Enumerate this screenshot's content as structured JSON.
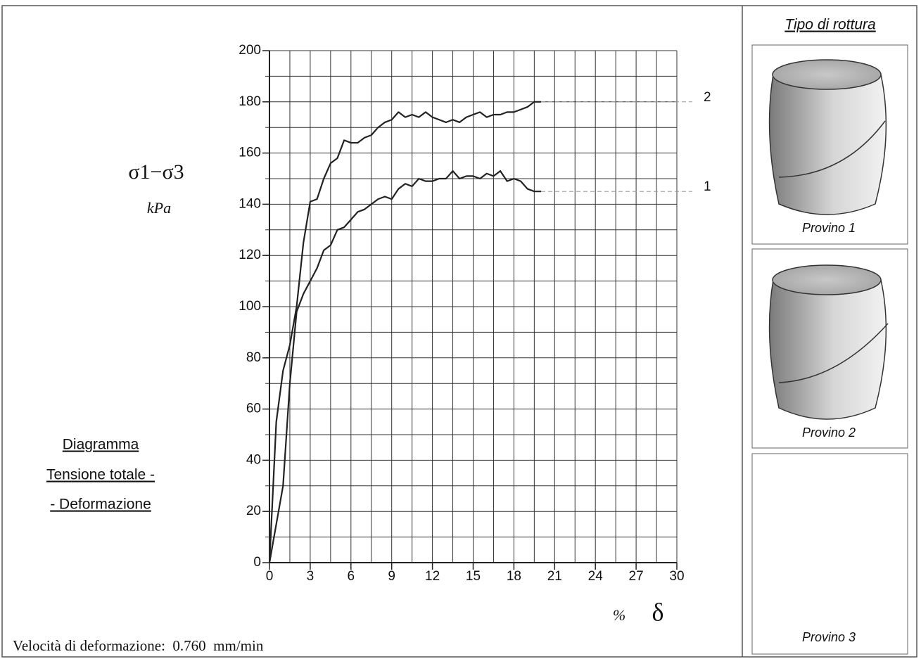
{
  "chart_data": {
    "type": "line",
    "ylabel": "σ1−σ3",
    "yunit": "kPa",
    "xunit": "%",
    "xlabel": "δ",
    "xlim": [
      0,
      30
    ],
    "xticks": [
      0,
      3,
      6,
      9,
      12,
      15,
      18,
      21,
      24,
      27,
      30
    ],
    "ylim": [
      0,
      200
    ],
    "yticks": [
      0,
      20,
      40,
      60,
      80,
      100,
      120,
      140,
      160,
      180,
      200
    ],
    "grid": true,
    "grid_step_x": 1.5,
    "grid_step_y": 10,
    "x": [
      0,
      0.5,
      1,
      1.5,
      2,
      2.5,
      3,
      3.5,
      4,
      4.5,
      5,
      5.5,
      6,
      6.5,
      7,
      7.5,
      8,
      8.5,
      9,
      9.5,
      10,
      10.5,
      11,
      11.5,
      12,
      12.5,
      13,
      13.5,
      14,
      14.5,
      15,
      15.5,
      16,
      16.5,
      17,
      17.5,
      18,
      18.5,
      19,
      19.5,
      20
    ],
    "series": [
      {
        "name": "1",
        "color": "#222222",
        "values": [
          0,
          15,
          30,
          70,
          98,
          105,
          110,
          115,
          122,
          124,
          130,
          131,
          134,
          137,
          138,
          140,
          142,
          143,
          142,
          146,
          148,
          147,
          150,
          149,
          149,
          150,
          150,
          153,
          150,
          151,
          151,
          150,
          152,
          151,
          153,
          149,
          150,
          149,
          146,
          145,
          145
        ]
      },
      {
        "name": "2",
        "color": "#222222",
        "values": [
          0,
          55,
          75,
          85,
          100,
          125,
          141,
          142,
          150,
          156,
          158,
          165,
          164,
          164,
          166,
          167,
          170,
          172,
          173,
          176,
          174,
          175,
          174,
          176,
          174,
          173,
          172,
          173,
          172,
          174,
          175,
          176,
          174,
          175,
          175,
          176,
          176,
          177,
          178,
          180,
          180
        ]
      }
    ]
  },
  "caption": {
    "lines": [
      "Diagramma",
      "Tensione totale -",
      "- Deformazione"
    ],
    "footer": "Velocità di deformazione:  0.760  mm/min"
  },
  "failure_panel": {
    "title": "Tipo di rottura",
    "samples": [
      "Provino 1",
      "Provino 2",
      "Provino 3"
    ]
  }
}
